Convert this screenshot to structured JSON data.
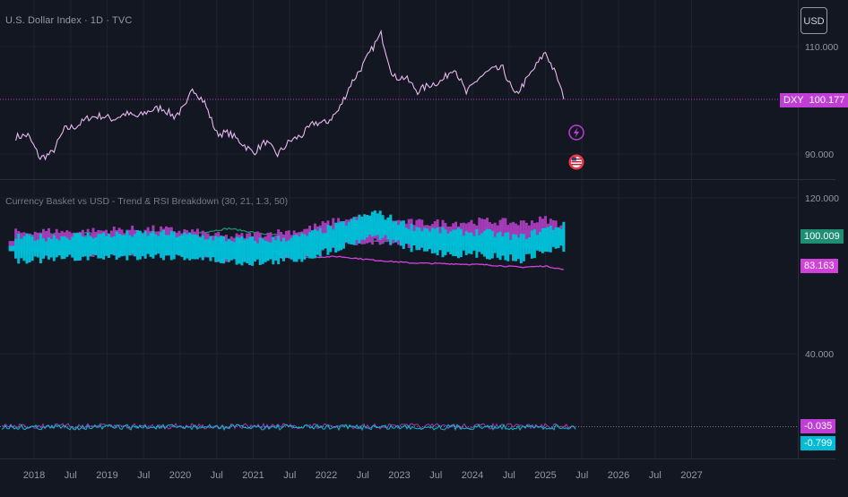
{
  "header": {
    "title": "U.S. Dollar Index · 1D · TVC",
    "currency_button": "USD"
  },
  "indicator": {
    "title": "Currency Basket vs USD - Trend & RSI Breakdown (30, 21, 1.3, 50)"
  },
  "colors": {
    "background": "#131722",
    "grid": "#1e222d",
    "dxy_line": "#e9b8f0",
    "dxy_ref": "#c03ed6",
    "magenta": "#a33ab6",
    "teal": "#1e8f73",
    "cyan": "#00bcd4",
    "pink": "#d142d9"
  },
  "icons": [
    "lightning-icon",
    "us-flag-icon"
  ],
  "chart_data": [
    {
      "type": "line",
      "pane": "price",
      "series": [
        {
          "name": "DXY",
          "x": [
            "2017-10",
            "2017-12",
            "2018-02",
            "2018-04",
            "2018-06",
            "2018-08",
            "2018-10",
            "2018-12",
            "2019-02",
            "2019-04",
            "2019-06",
            "2019-08",
            "2019-10",
            "2019-12",
            "2020-02",
            "2020-03",
            "2020-05",
            "2020-07",
            "2020-09",
            "2020-11",
            "2021-01",
            "2021-03",
            "2021-05",
            "2021-07",
            "2021-09",
            "2021-11",
            "2022-01",
            "2022-03",
            "2022-05",
            "2022-07",
            "2022-09",
            "2022-10",
            "2022-12",
            "2023-02",
            "2023-04",
            "2023-06",
            "2023-08",
            "2023-10",
            "2023-12",
            "2024-02",
            "2024-04",
            "2024-06",
            "2024-08",
            "2024-10",
            "2025-01",
            "2025-03",
            "2025-04"
          ],
          "values": [
            93.2,
            93.5,
            89.2,
            90.2,
            94.6,
            95.2,
            96.8,
            97.1,
            96.5,
            97.5,
            96.9,
            98.1,
            98.6,
            97.0,
            98.9,
            102.4,
            99.6,
            93.8,
            93.9,
            92.2,
            90.2,
            92.3,
            89.9,
            92.4,
            93.5,
            95.8,
            95.8,
            98.1,
            103.0,
            106.5,
            110.5,
            112.3,
            104.3,
            104.2,
            101.7,
            102.9,
            103.6,
            106.2,
            101.3,
            104.1,
            105.6,
            105.9,
            100.8,
            104.0,
            109.0,
            104.0,
            100.2
          ]
        }
      ],
      "y_ticks": [
        "110.000",
        "90.000"
      ],
      "last_value_label": "DXY",
      "last_value": "100.177"
    },
    {
      "type": "line",
      "pane": "indicator",
      "title": "Currency Basket vs USD - Trend & RSI Breakdown (30, 21, 1.3, 50)",
      "x": [
        "2017-10",
        "2018-03",
        "2018-09",
        "2019-03",
        "2019-09",
        "2020-03",
        "2020-09",
        "2021-03",
        "2021-09",
        "2022-03",
        "2022-09",
        "2023-03",
        "2023-09",
        "2024-03",
        "2024-09",
        "2025-01",
        "2025-04"
      ],
      "series": [
        {
          "values": [
            100.5,
            101.6,
            102.0,
            101.1,
            100.4,
            101.6,
            104.3,
            101.4,
            100.1,
            98.6,
            97.6,
            98.9,
            99.5,
            100.3,
            99.6,
            97.6,
            100.0
          ]
        },
        {
          "values": [
            96.5,
            97.1,
            96.8,
            98.0,
            98.2,
            96.9,
            93.9,
            96.0,
            97.6,
            102.7,
            103.4,
            101.6,
            101.4,
            102.4,
            101.4,
            103.4,
            100.4
          ]
        },
        {
          "values": [
            95.5,
            95.1,
            93.0,
            92.7,
            92.1,
            90.5,
            90.0,
            89.4,
            89.4,
            89.9,
            88.0,
            86.6,
            86.2,
            85.7,
            84.4,
            85.0,
            83.2
          ]
        },
        {
          "values": [
            94.0,
            94.0,
            95.0,
            95.5,
            96.0,
            95.0,
            93.0,
            92.5,
            94.5,
            100.0,
            107.0,
            99.5,
            97.0,
            96.5,
            94.0,
            98.5,
            100.0
          ]
        }
      ],
      "y_ticks": [
        "120.000",
        "40.000"
      ],
      "last_values": [
        "100.009",
        "83.163"
      ],
      "oscillator_last_values": [
        "-0.035",
        "-0.799"
      ]
    }
  ],
  "time_axis": [
    "2018",
    "Jul",
    "2019",
    "Jul",
    "2020",
    "Jul",
    "2021",
    "Jul",
    "2022",
    "Jul",
    "2023",
    "Jul",
    "2024",
    "Jul",
    "2025",
    "Jul",
    "2026",
    "Jul",
    "2027"
  ]
}
